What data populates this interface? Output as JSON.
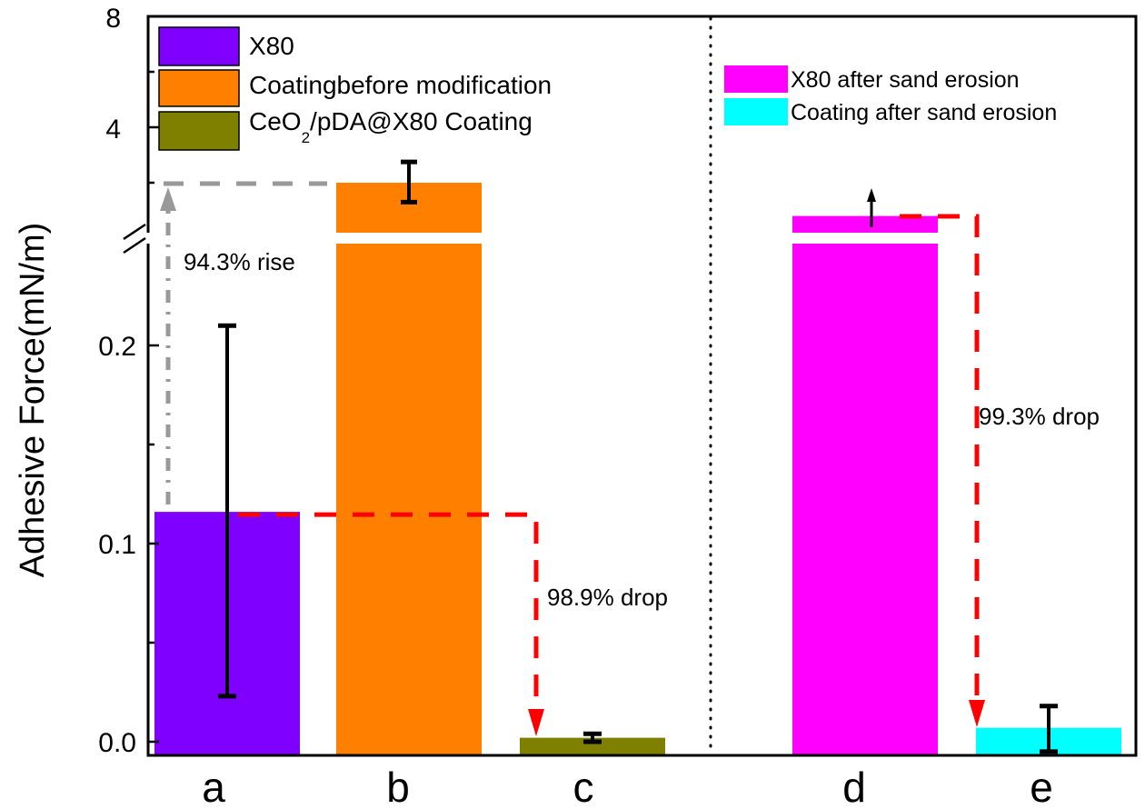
{
  "chart_data": {
    "type": "bar",
    "ylabel": "Adhesive Force(mN/m)",
    "y_axis_broken": true,
    "lower_ylim": [
      0,
      0.23
    ],
    "upper_ylim": [
      0.23,
      8
    ],
    "lower_ticks": [
      "0.0",
      "0.1",
      "0.2"
    ],
    "upper_ticks": [
      "4",
      "8"
    ],
    "grid": false,
    "categories": [
      "a",
      "b",
      "c",
      "d",
      "e"
    ],
    "bars": [
      {
        "category": "a",
        "value": 0.116,
        "err_low": 0.023,
        "err_high": 0.21,
        "color": "#8000ff",
        "segment": "lower"
      },
      {
        "category": "b",
        "value": 2.0,
        "err_low": 1.3,
        "err_high": 2.75,
        "color": "#ff8000",
        "segment": "upper"
      },
      {
        "category": "c",
        "value": 0.002,
        "err_low": 0.0,
        "err_high": 0.004,
        "color": "#808000",
        "segment": "lower"
      },
      {
        "category": "d",
        "value": 0.8,
        "arrow_up": true,
        "color": "#ff00ff",
        "segment": "upper"
      },
      {
        "category": "e",
        "value": 0.007,
        "err_low": -0.005,
        "err_high": 0.018,
        "color": "#00ffff",
        "segment": "lower"
      }
    ],
    "legend_left": [
      {
        "label": "X80",
        "color": "#8000ff"
      },
      {
        "label": "Coatingbefore modification",
        "color": "#ff8000"
      },
      {
        "label_main": "CeO",
        "label_sub": "2",
        "label_rest": "/pDA@X80 Coating",
        "color": "#808000"
      }
    ],
    "legend_right": [
      {
        "label": "X80 after sand erosion",
        "color": "#ff00ff"
      },
      {
        "label": "Coating after sand erosion",
        "color": "#00ffff"
      }
    ],
    "annotations": {
      "rise": "94.3% rise",
      "drop1": "98.9% drop",
      "drop2": "99.3% drop"
    },
    "annotation_colors": {
      "rise": "#999999",
      "drop": "#ff0000"
    }
  }
}
